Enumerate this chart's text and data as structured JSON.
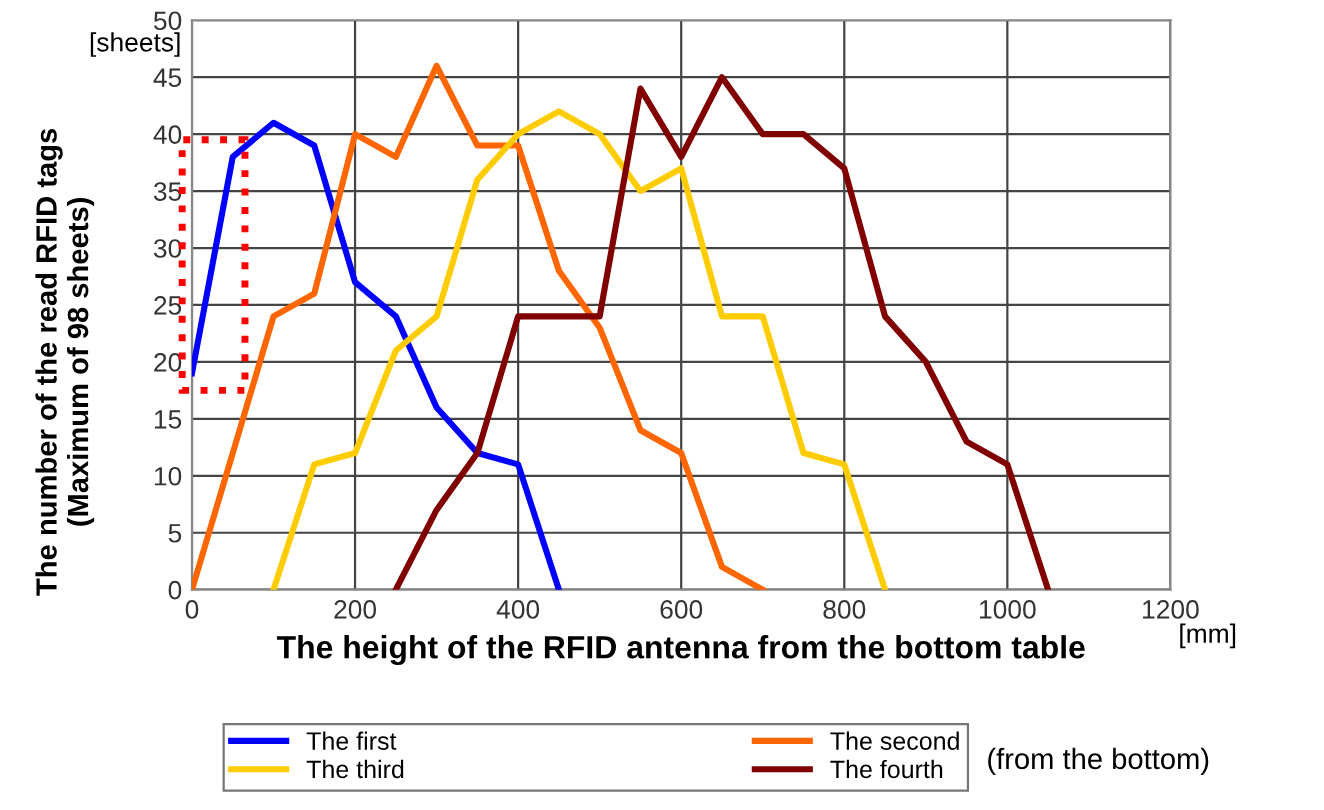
{
  "chart_data": {
    "type": "line",
    "xlabel": "The height of the RFID antenna from the bottom table",
    "ylabel": "The number of the read RFID tags\n(Maximum of 98 sheets)",
    "annotations": [
      "[sheets]",
      "[mm]",
      "(from the bottom)"
    ],
    "xlim": [
      0,
      1200
    ],
    "xticks": [
      0,
      200,
      400,
      600,
      800,
      1000,
      1200
    ],
    "ylim": [
      0,
      50
    ],
    "yticks": [
      0,
      5,
      10,
      15,
      20,
      25,
      30,
      35,
      40,
      45,
      50
    ],
    "grid": true,
    "legend": "bottom",
    "marker": "none",
    "line_style": "solid",
    "series": [
      {
        "name": "The first",
        "color": "#0000ff",
        "x": [
          0,
          50,
          100,
          150,
          200,
          250,
          300,
          350,
          400,
          450
        ],
        "values": [
          19,
          38,
          41,
          39,
          27,
          24,
          16,
          12,
          11,
          0
        ]
      },
      {
        "name": "The second",
        "color": "#ff6600",
        "x": [
          0,
          50,
          100,
          150,
          200,
          250,
          300,
          350,
          400,
          450,
          500,
          550,
          600,
          650,
          700
        ],
        "values": [
          0,
          12,
          24,
          26,
          40,
          38,
          46,
          39,
          39,
          28,
          23,
          14,
          12,
          2,
          0
        ]
      },
      {
        "name": "The third",
        "color": "#ffcc00",
        "x": [
          100,
          150,
          200,
          250,
          300,
          350,
          400,
          450,
          500,
          550,
          600,
          650,
          700,
          750,
          800,
          850
        ],
        "values": [
          0,
          11,
          12,
          21,
          24,
          36,
          40,
          42,
          40,
          35,
          37,
          24,
          24,
          12,
          11,
          0
        ]
      },
      {
        "name": "The fourth",
        "color": "#800000",
        "x": [
          250,
          300,
          350,
          400,
          450,
          500,
          550,
          600,
          650,
          700,
          750,
          800,
          850,
          900,
          950,
          1000,
          1050
        ],
        "values": [
          0,
          7,
          12,
          24,
          24,
          24,
          44,
          38,
          45,
          40,
          40,
          37,
          24,
          20,
          13,
          11,
          0
        ]
      }
    ]
  }
}
